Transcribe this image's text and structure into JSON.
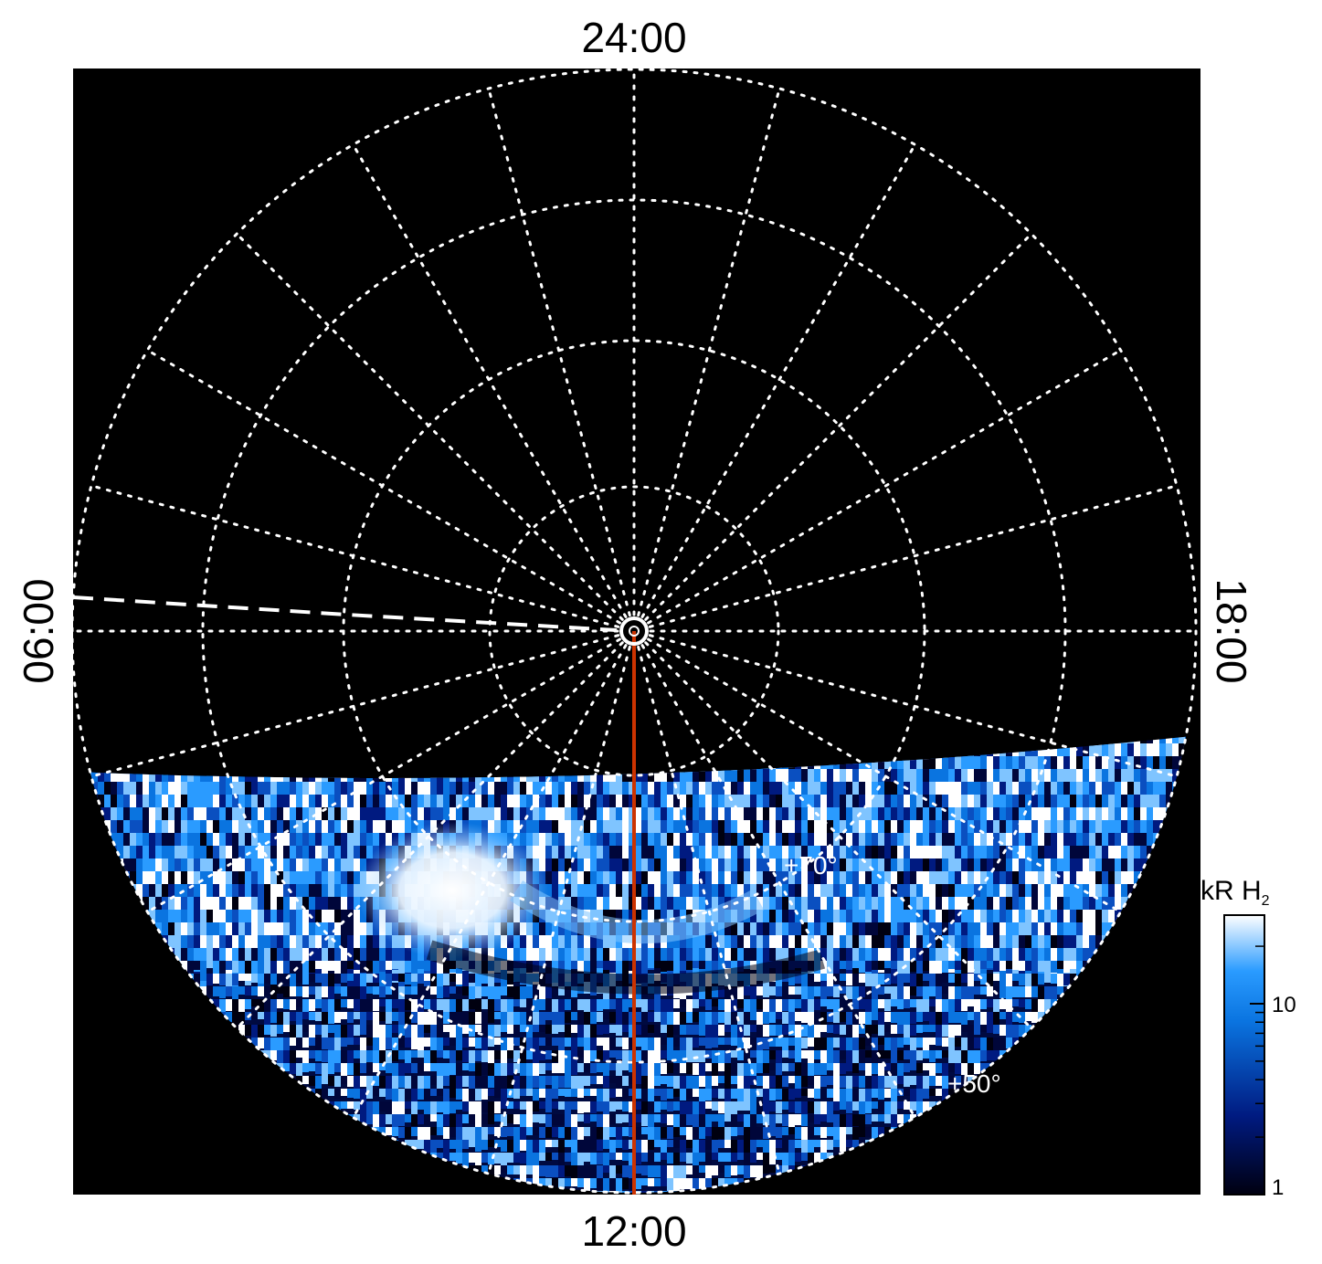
{
  "axes_labels": {
    "top": "24:00",
    "bottom": "12:00",
    "left": "06:00",
    "right": "18:00"
  },
  "latitude_labels": {
    "inner": "+70°",
    "outer": "+50°"
  },
  "colorbar": {
    "unit": "kR H",
    "subscript": "2",
    "ticks": [
      {
        "label": "10",
        "value": 10
      },
      {
        "label": "1",
        "value": 1
      }
    ],
    "range": [
      1,
      30
    ],
    "scale": "log",
    "colors": [
      "#000010",
      "#001a80",
      "#0a74e0",
      "#2a9bff",
      "#ffffff"
    ]
  },
  "colors": {
    "background": "#000000",
    "grid": "#ffffff",
    "meridian_line": "#cc3300",
    "dashed_line": "#ffffff"
  }
}
